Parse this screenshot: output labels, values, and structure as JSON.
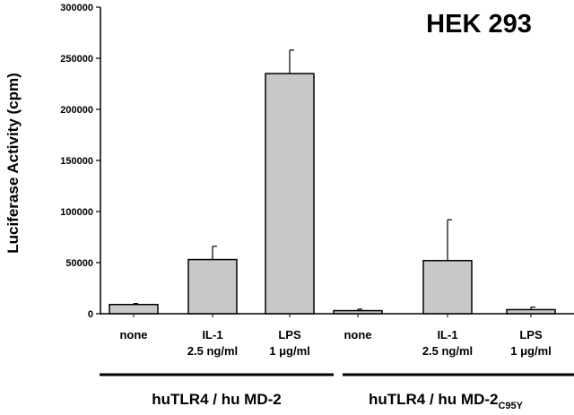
{
  "chart_data": {
    "type": "bar",
    "title": "HEK 293",
    "ylabel": "Luciferase Activity (cpm)",
    "ylim": [
      0,
      300000
    ],
    "yticks": [
      0,
      50000,
      100000,
      150000,
      200000,
      250000,
      300000
    ],
    "categories": [
      {
        "line1": "none",
        "line2": ""
      },
      {
        "line1": "IL-1",
        "line2": "2.5 ng/ml"
      },
      {
        "line1": "LPS",
        "line2": "1 μg/ml"
      },
      {
        "line1": "none",
        "line2": ""
      },
      {
        "line1": "IL-1",
        "line2": "2.5 ng/ml"
      },
      {
        "line1": "LPS",
        "line2": "1 μg/ml"
      }
    ],
    "values": [
      9000,
      53000,
      235000,
      3000,
      52000,
      4000
    ],
    "errors": [
      1000,
      13000,
      23000,
      1500,
      40000,
      2500
    ],
    "groups": [
      {
        "label": "huTLR4 / hu MD-2",
        "sub": ""
      },
      {
        "label": "huTLR4 / hu MD-2",
        "sub": "C95Y"
      }
    ],
    "grid": false,
    "colors": {
      "bar_fill": "#c8c8c8",
      "bar_stroke": "#000000"
    }
  }
}
